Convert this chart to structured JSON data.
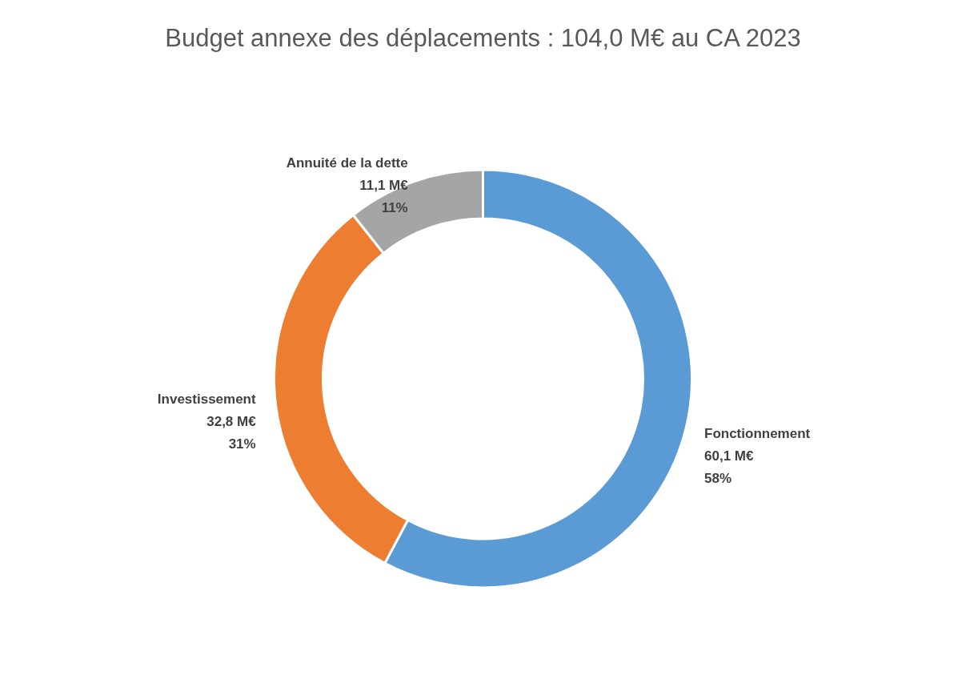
{
  "chart_data": {
    "type": "donut",
    "title": "Budget annexe des déplacements : 104,0 M€ au CA 2023",
    "categories": [
      "Fonctionnement",
      "Investissement",
      "Annuité de la dette"
    ],
    "values": [
      60.1,
      32.8,
      11.1
    ],
    "colors": [
      "#5b9bd5",
      "#ed7d31",
      "#a5a5a5"
    ],
    "value_labels": [
      "60,1 M€\n58%",
      "32,8 M€\n31%",
      "11,1 M€\n11%"
    ]
  }
}
